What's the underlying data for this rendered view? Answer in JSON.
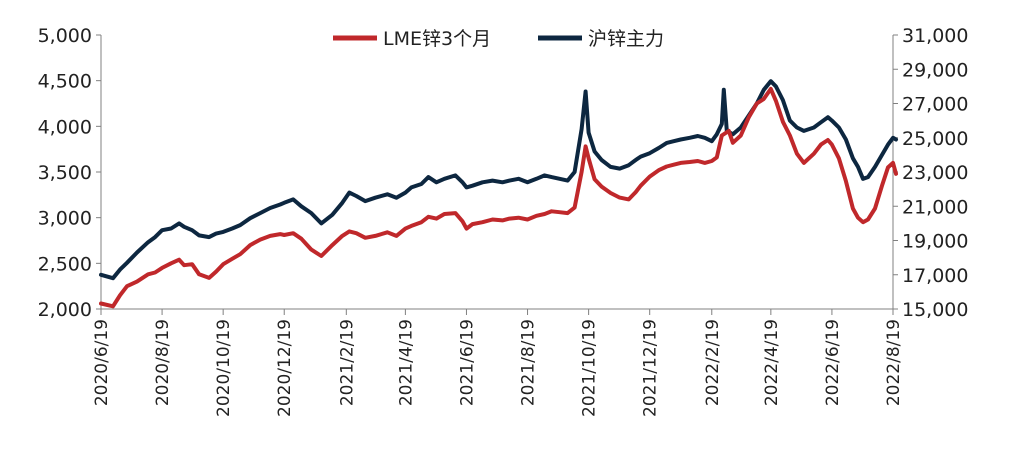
{
  "chart_data": {
    "type": "line",
    "title": "",
    "xlabel": "",
    "legend_position": "top-center",
    "grid": false,
    "x_axis": {
      "ticks": [
        "2020/6/19",
        "2020/8/19",
        "2020/10/19",
        "2020/12/19",
        "2021/2/19",
        "2021/4/19",
        "2021/6/19",
        "2021/8/19",
        "2021/10/19",
        "2021/12/19",
        "2022/2/19",
        "2022/4/19",
        "2022/6/19",
        "2022/8/19"
      ],
      "range": [
        "2020/6/19",
        "2022/8/19"
      ]
    },
    "y_axis_left": {
      "range": [
        2000,
        5000
      ],
      "ticks": [
        "2,000",
        "2,500",
        "3,000",
        "3,500",
        "4,000",
        "4,500",
        "5,000"
      ]
    },
    "y_axis_right": {
      "range": [
        15000,
        31000
      ],
      "ticks": [
        "15,000",
        "17,000",
        "19,000",
        "21,000",
        "23,000",
        "25,000",
        "27,000",
        "29,000",
        "31,000"
      ]
    },
    "series": [
      {
        "name": "LME锌3个月",
        "axis": "left",
        "color": "#c0282b",
        "points": [
          [
            "2020-06-19",
            2060
          ],
          [
            "2020-07-01",
            2030
          ],
          [
            "2020-07-08",
            2150
          ],
          [
            "2020-07-15",
            2250
          ],
          [
            "2020-07-25",
            2300
          ],
          [
            "2020-08-05",
            2380
          ],
          [
            "2020-08-12",
            2400
          ],
          [
            "2020-08-19",
            2450
          ],
          [
            "2020-08-28",
            2500
          ],
          [
            "2020-09-05",
            2540
          ],
          [
            "2020-09-10",
            2480
          ],
          [
            "2020-09-18",
            2490
          ],
          [
            "2020-09-25",
            2380
          ],
          [
            "2020-10-05",
            2340
          ],
          [
            "2020-10-12",
            2410
          ],
          [
            "2020-10-19",
            2490
          ],
          [
            "2020-10-28",
            2550
          ],
          [
            "2020-11-05",
            2600
          ],
          [
            "2020-11-15",
            2700
          ],
          [
            "2020-11-25",
            2760
          ],
          [
            "2020-12-05",
            2800
          ],
          [
            "2020-12-15",
            2820
          ],
          [
            "2020-12-19",
            2810
          ],
          [
            "2020-12-28",
            2830
          ],
          [
            "2021-01-05",
            2770
          ],
          [
            "2021-01-15",
            2650
          ],
          [
            "2021-01-25",
            2580
          ],
          [
            "2021-02-05",
            2700
          ],
          [
            "2021-02-15",
            2800
          ],
          [
            "2021-02-22",
            2850
          ],
          [
            "2021-03-01",
            2830
          ],
          [
            "2021-03-10",
            2780
          ],
          [
            "2021-03-20",
            2800
          ],
          [
            "2021-04-01",
            2840
          ],
          [
            "2021-04-10",
            2800
          ],
          [
            "2021-04-19",
            2880
          ],
          [
            "2021-04-25",
            2910
          ],
          [
            "2021-05-05",
            2950
          ],
          [
            "2021-05-12",
            3010
          ],
          [
            "2021-05-20",
            2990
          ],
          [
            "2021-05-28",
            3040
          ],
          [
            "2021-06-08",
            3050
          ],
          [
            "2021-06-15",
            2960
          ],
          [
            "2021-06-19",
            2880
          ],
          [
            "2021-06-25",
            2930
          ],
          [
            "2021-07-05",
            2950
          ],
          [
            "2021-07-15",
            2980
          ],
          [
            "2021-07-25",
            2970
          ],
          [
            "2021-08-01",
            2990
          ],
          [
            "2021-08-10",
            3000
          ],
          [
            "2021-08-19",
            2980
          ],
          [
            "2021-08-28",
            3020
          ],
          [
            "2021-09-05",
            3040
          ],
          [
            "2021-09-12",
            3070
          ],
          [
            "2021-09-20",
            3060
          ],
          [
            "2021-09-28",
            3050
          ],
          [
            "2021-10-05",
            3110
          ],
          [
            "2021-10-12",
            3500
          ],
          [
            "2021-10-16",
            3780
          ],
          [
            "2021-10-19",
            3650
          ],
          [
            "2021-10-25",
            3420
          ],
          [
            "2021-11-01",
            3340
          ],
          [
            "2021-11-10",
            3270
          ],
          [
            "2021-11-19",
            3220
          ],
          [
            "2021-11-28",
            3200
          ],
          [
            "2021-12-05",
            3280
          ],
          [
            "2021-12-10",
            3350
          ],
          [
            "2021-12-19",
            3450
          ],
          [
            "2021-12-28",
            3520
          ],
          [
            "2022-01-05",
            3560
          ],
          [
            "2022-01-12",
            3580
          ],
          [
            "2022-01-19",
            3600
          ],
          [
            "2022-01-28",
            3610
          ],
          [
            "2022-02-05",
            3620
          ],
          [
            "2022-02-12",
            3600
          ],
          [
            "2022-02-19",
            3620
          ],
          [
            "2022-02-24",
            3660
          ],
          [
            "2022-03-01",
            3900
          ],
          [
            "2022-03-08",
            3950
          ],
          [
            "2022-03-12",
            3820
          ],
          [
            "2022-03-20",
            3900
          ],
          [
            "2022-03-28",
            4100
          ],
          [
            "2022-04-05",
            4250
          ],
          [
            "2022-04-12",
            4300
          ],
          [
            "2022-04-19",
            4410
          ],
          [
            "2022-04-24",
            4280
          ],
          [
            "2022-05-01",
            4050
          ],
          [
            "2022-05-08",
            3900
          ],
          [
            "2022-05-15",
            3700
          ],
          [
            "2022-05-22",
            3600
          ],
          [
            "2022-06-01",
            3700
          ],
          [
            "2022-06-08",
            3800
          ],
          [
            "2022-06-15",
            3850
          ],
          [
            "2022-06-19",
            3800
          ],
          [
            "2022-06-26",
            3650
          ],
          [
            "2022-07-03",
            3400
          ],
          [
            "2022-07-10",
            3100
          ],
          [
            "2022-07-15",
            3000
          ],
          [
            "2022-07-20",
            2950
          ],
          [
            "2022-07-25",
            2980
          ],
          [
            "2022-08-01",
            3100
          ],
          [
            "2022-08-08",
            3350
          ],
          [
            "2022-08-14",
            3550
          ],
          [
            "2022-08-19",
            3600
          ],
          [
            "2022-08-22",
            3480
          ]
        ]
      },
      {
        "name": "沪锌主力",
        "axis": "right",
        "color": "#0d2740",
        "points": [
          [
            "2020-06-19",
            17000
          ],
          [
            "2020-07-01",
            16800
          ],
          [
            "2020-07-08",
            17300
          ],
          [
            "2020-07-15",
            17700
          ],
          [
            "2020-07-25",
            18300
          ],
          [
            "2020-08-05",
            18900
          ],
          [
            "2020-08-12",
            19200
          ],
          [
            "2020-08-19",
            19600
          ],
          [
            "2020-08-28",
            19700
          ],
          [
            "2020-09-05",
            20000
          ],
          [
            "2020-09-10",
            19800
          ],
          [
            "2020-09-18",
            19600
          ],
          [
            "2020-09-25",
            19300
          ],
          [
            "2020-10-05",
            19200
          ],
          [
            "2020-10-12",
            19400
          ],
          [
            "2020-10-19",
            19500
          ],
          [
            "2020-10-28",
            19700
          ],
          [
            "2020-11-05",
            19900
          ],
          [
            "2020-11-15",
            20300
          ],
          [
            "2020-11-25",
            20600
          ],
          [
            "2020-12-05",
            20900
          ],
          [
            "2020-12-15",
            21100
          ],
          [
            "2020-12-19",
            21200
          ],
          [
            "2020-12-28",
            21400
          ],
          [
            "2021-01-05",
            21000
          ],
          [
            "2021-01-15",
            20600
          ],
          [
            "2021-01-25",
            20000
          ],
          [
            "2021-02-05",
            20500
          ],
          [
            "2021-02-15",
            21200
          ],
          [
            "2021-02-22",
            21800
          ],
          [
            "2021-03-01",
            21600
          ],
          [
            "2021-03-10",
            21300
          ],
          [
            "2021-03-20",
            21500
          ],
          [
            "2021-04-01",
            21700
          ],
          [
            "2021-04-10",
            21500
          ],
          [
            "2021-04-19",
            21800
          ],
          [
            "2021-04-25",
            22100
          ],
          [
            "2021-05-05",
            22300
          ],
          [
            "2021-05-12",
            22700
          ],
          [
            "2021-05-20",
            22400
          ],
          [
            "2021-05-28",
            22600
          ],
          [
            "2021-06-08",
            22800
          ],
          [
            "2021-06-15",
            22400
          ],
          [
            "2021-06-19",
            22100
          ],
          [
            "2021-06-25",
            22200
          ],
          [
            "2021-07-05",
            22400
          ],
          [
            "2021-07-15",
            22500
          ],
          [
            "2021-07-25",
            22400
          ],
          [
            "2021-08-01",
            22500
          ],
          [
            "2021-08-10",
            22600
          ],
          [
            "2021-08-19",
            22400
          ],
          [
            "2021-08-28",
            22600
          ],
          [
            "2021-09-05",
            22800
          ],
          [
            "2021-09-12",
            22700
          ],
          [
            "2021-09-20",
            22600
          ],
          [
            "2021-09-28",
            22500
          ],
          [
            "2021-10-05",
            23000
          ],
          [
            "2021-10-12",
            25500
          ],
          [
            "2021-10-16",
            27700
          ],
          [
            "2021-10-19",
            25300
          ],
          [
            "2021-10-25",
            24200
          ],
          [
            "2021-11-01",
            23700
          ],
          [
            "2021-11-10",
            23300
          ],
          [
            "2021-11-19",
            23200
          ],
          [
            "2021-11-28",
            23400
          ],
          [
            "2021-12-05",
            23700
          ],
          [
            "2021-12-10",
            23900
          ],
          [
            "2021-12-19",
            24100
          ],
          [
            "2021-12-28",
            24400
          ],
          [
            "2022-01-05",
            24700
          ],
          [
            "2022-01-12",
            24800
          ],
          [
            "2022-01-19",
            24900
          ],
          [
            "2022-01-28",
            25000
          ],
          [
            "2022-02-05",
            25100
          ],
          [
            "2022-02-12",
            25000
          ],
          [
            "2022-02-19",
            24800
          ],
          [
            "2022-02-24",
            25200
          ],
          [
            "2022-03-01",
            25800
          ],
          [
            "2022-03-03",
            27800
          ],
          [
            "2022-03-06",
            25400
          ],
          [
            "2022-03-12",
            25200
          ],
          [
            "2022-03-20",
            25600
          ],
          [
            "2022-03-28",
            26300
          ],
          [
            "2022-04-05",
            27000
          ],
          [
            "2022-04-12",
            27800
          ],
          [
            "2022-04-19",
            28300
          ],
          [
            "2022-04-24",
            28000
          ],
          [
            "2022-05-01",
            27200
          ],
          [
            "2022-05-08",
            26000
          ],
          [
            "2022-05-15",
            25600
          ],
          [
            "2022-05-22",
            25400
          ],
          [
            "2022-06-01",
            25600
          ],
          [
            "2022-06-08",
            25900
          ],
          [
            "2022-06-15",
            26200
          ],
          [
            "2022-06-19",
            26000
          ],
          [
            "2022-06-26",
            25600
          ],
          [
            "2022-07-03",
            24900
          ],
          [
            "2022-07-10",
            23800
          ],
          [
            "2022-07-15",
            23300
          ],
          [
            "2022-07-20",
            22600
          ],
          [
            "2022-07-25",
            22700
          ],
          [
            "2022-08-01",
            23300
          ],
          [
            "2022-08-08",
            24000
          ],
          [
            "2022-08-14",
            24600
          ],
          [
            "2022-08-19",
            25000
          ],
          [
            "2022-08-22",
            24900
          ]
        ]
      }
    ]
  }
}
